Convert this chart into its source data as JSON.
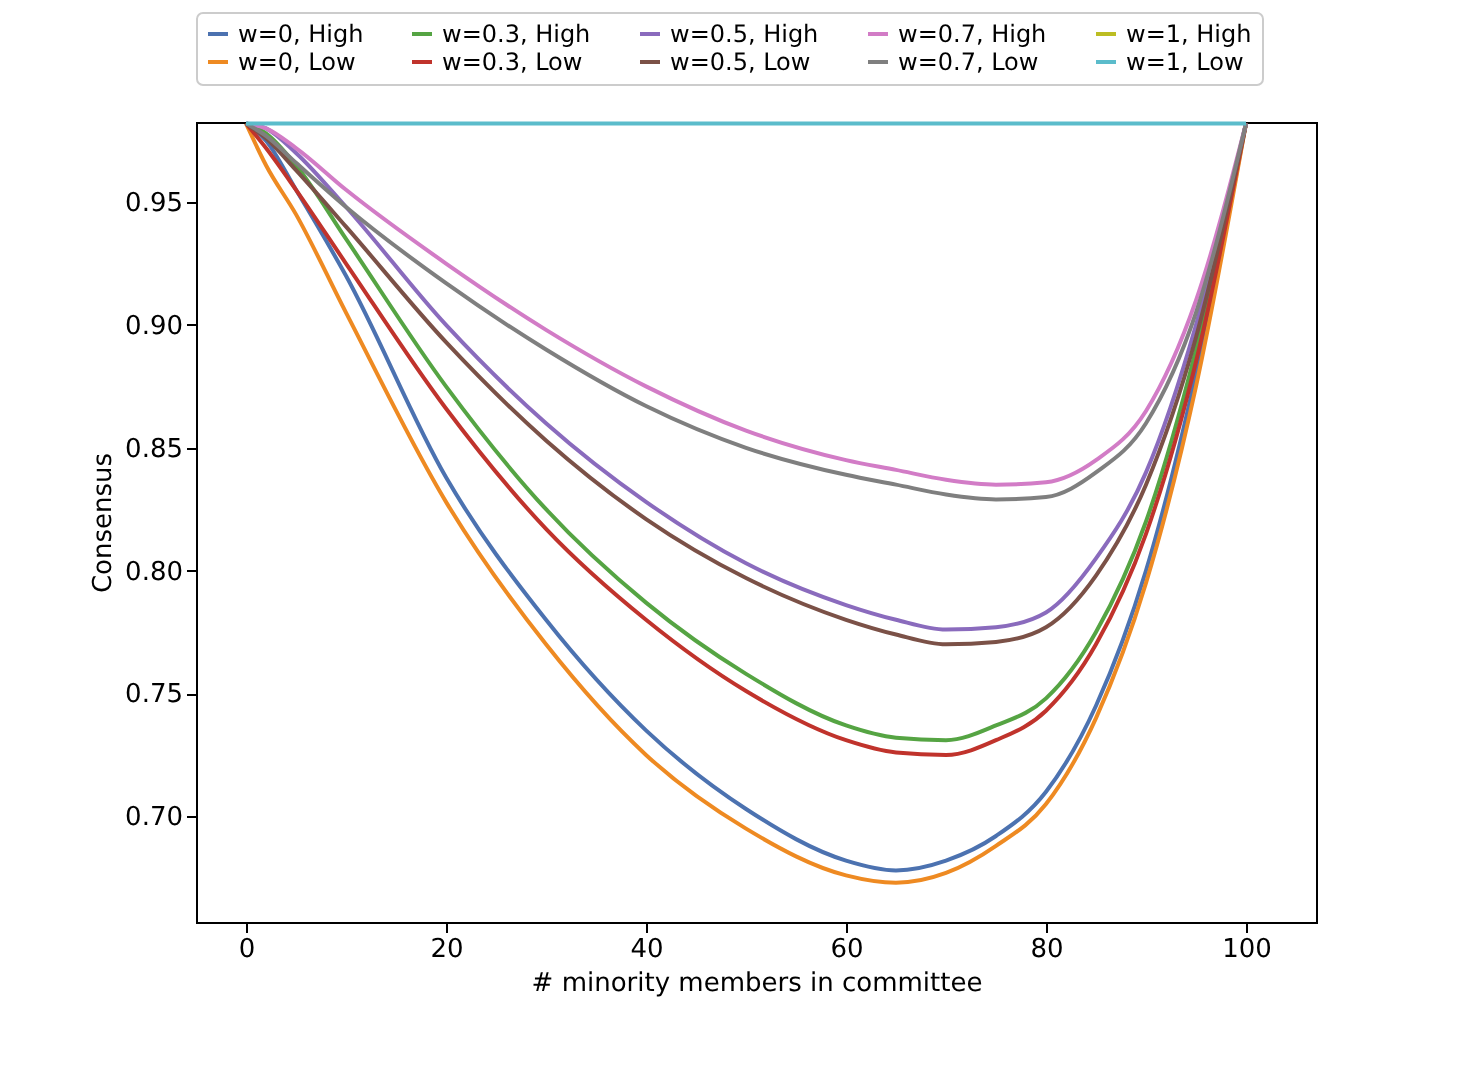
{
  "chart_data": {
    "type": "line",
    "xlabel": "# minority members in committee",
    "ylabel": "Consensus",
    "xlim": [
      -5,
      107
    ],
    "ylim": [
      0.657,
      0.9826
    ],
    "xticks": [
      0,
      20,
      40,
      60,
      80,
      100
    ],
    "yticks": [
      {
        "value": 0.7,
        "label": "0.70"
      },
      0.75,
      {
        "value": 0.8,
        "label": "0.80"
      },
      0.85,
      {
        "value": 0.9,
        "label": "0.90"
      },
      0.95
    ],
    "grid": false,
    "legend": "top",
    "marker": "none",
    "line_style": "solid",
    "x": [
      0,
      2,
      5,
      10,
      20,
      30,
      40,
      50,
      60,
      65,
      70,
      75,
      80,
      85,
      90,
      95,
      100
    ],
    "series": [
      {
        "name": "w=0, High",
        "color": "#4c72b0",
        "values": [
          0.982,
          0.975,
          0.955,
          0.92,
          0.838,
          0.78,
          0.735,
          0.703,
          0.682,
          0.678,
          0.682,
          0.692,
          0.71,
          0.745,
          0.8,
          0.88,
          0.982
        ]
      },
      {
        "name": "w=0, Low",
        "color": "#ee8a22",
        "values": [
          0.982,
          0.965,
          0.945,
          0.905,
          0.828,
          0.77,
          0.725,
          0.695,
          0.676,
          0.673,
          0.677,
          0.688,
          0.705,
          0.74,
          0.795,
          0.875,
          0.982
        ]
      },
      {
        "name": "w=0.3, High",
        "color": "#55a443",
        "values": [
          0.982,
          0.978,
          0.965,
          0.935,
          0.875,
          0.825,
          0.787,
          0.758,
          0.737,
          0.732,
          0.731,
          0.737,
          0.748,
          0.775,
          0.82,
          0.89,
          0.982
        ]
      },
      {
        "name": "w=0.3, Low",
        "color": "#c0332c",
        "values": [
          0.982,
          0.972,
          0.955,
          0.925,
          0.866,
          0.817,
          0.78,
          0.751,
          0.731,
          0.726,
          0.725,
          0.731,
          0.743,
          0.77,
          0.815,
          0.885,
          0.982
        ]
      },
      {
        "name": "w=0.5, High",
        "color": "#8a6bbd",
        "values": [
          0.982,
          0.98,
          0.97,
          0.948,
          0.9,
          0.86,
          0.828,
          0.803,
          0.786,
          0.78,
          0.776,
          0.777,
          0.783,
          0.805,
          0.84,
          0.9,
          0.982
        ]
      },
      {
        "name": "w=0.5, Low",
        "color": "#7b5147",
        "values": [
          0.982,
          0.976,
          0.963,
          0.94,
          0.893,
          0.853,
          0.821,
          0.797,
          0.78,
          0.774,
          0.77,
          0.771,
          0.777,
          0.798,
          0.835,
          0.895,
          0.982
        ]
      },
      {
        "name": "w=0.7, High",
        "color": "#d27cc6",
        "values": [
          0.982,
          0.98,
          0.972,
          0.955,
          0.925,
          0.898,
          0.875,
          0.857,
          0.845,
          0.841,
          0.837,
          0.835,
          0.836,
          0.845,
          0.865,
          0.91,
          0.982
        ]
      },
      {
        "name": "w=0.7, Low",
        "color": "#7f7f7f",
        "values": [
          0.982,
          0.977,
          0.966,
          0.948,
          0.917,
          0.89,
          0.867,
          0.85,
          0.839,
          0.835,
          0.831,
          0.829,
          0.83,
          0.84,
          0.86,
          0.905,
          0.982
        ]
      },
      {
        "name": "w=1, High",
        "color": "#bcbd22",
        "values": [
          null,
          null,
          null,
          null,
          null,
          null,
          null,
          null,
          null,
          null,
          null,
          null,
          null,
          null,
          null,
          null,
          null
        ]
      },
      {
        "name": "w=1, Low",
        "color": "#5bbccb",
        "values": [
          0.982,
          0.982,
          0.982,
          0.982,
          0.982,
          0.982,
          0.982,
          0.982,
          0.982,
          0.982,
          0.982,
          0.982,
          0.982,
          0.982,
          0.982,
          0.982,
          0.982
        ]
      }
    ]
  }
}
